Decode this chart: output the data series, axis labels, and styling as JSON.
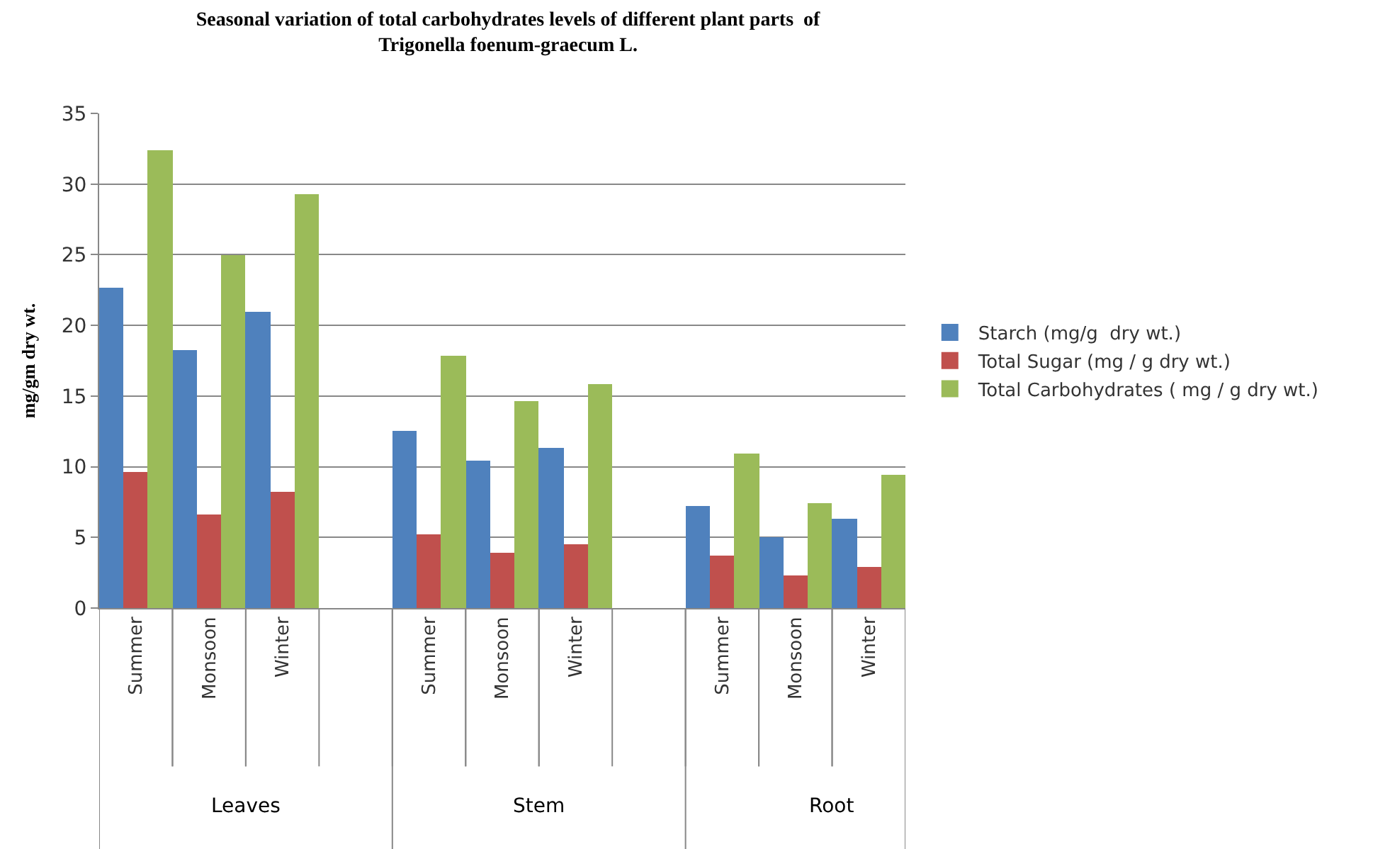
{
  "chart_data": {
    "type": "bar",
    "title": "Seasonal variation of total carbohydrates levels of different plant parts  of\nTrigonella foenum-graecum L.",
    "ylabel": "mg/gm dry wt.",
    "categories": [
      "Summer",
      "Monsoon",
      "Winter",
      null,
      "Summer",
      "Monsoon",
      "Winter",
      null,
      "Summer",
      "Monsoon",
      "Winter"
    ],
    "annotations": [
      "Leaves",
      "Stem",
      "Root"
    ],
    "series": [
      {
        "name": "Starch (mg/g  dry wt.)",
        "color": "#4f81bd",
        "values": [
          22.7,
          18.3,
          21.0,
          null,
          12.5,
          10.4,
          11.3,
          null,
          7.2,
          5.0,
          6.3
        ]
      },
      {
        "name": "Total Sugar (mg / g dry wt.)",
        "color": "#c0504d",
        "values": [
          9.6,
          6.6,
          8.2,
          null,
          5.2,
          3.9,
          4.5,
          null,
          3.7,
          2.3,
          2.9
        ]
      },
      {
        "name": "Total Carbohydrates ( mg / g dry wt.)",
        "color": "#9bbb59",
        "values": [
          32.4,
          25.0,
          29.3,
          null,
          17.9,
          14.6,
          15.8,
          null,
          10.9,
          7.4,
          9.4
        ]
      }
    ],
    "ylim": [
      0,
      35
    ],
    "yticks": [
      0,
      5,
      10,
      15,
      20,
      25,
      30,
      35
    ],
    "grid": "y",
    "legend": "right"
  }
}
